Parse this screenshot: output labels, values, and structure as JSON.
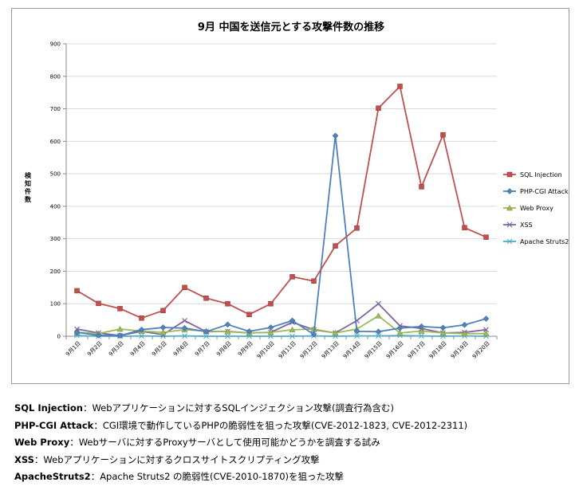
{
  "chart_data": {
    "type": "line",
    "title": "9月 中国を送信元とする攻撃件数の推移",
    "ylabel": "検知件数",
    "xlabel": "",
    "ylim": [
      0,
      900
    ],
    "yticks": [
      0,
      100,
      200,
      300,
      400,
      500,
      600,
      700,
      800,
      900
    ],
    "categories": [
      "9月1日",
      "9月2日",
      "9月3日",
      "9月4日",
      "9月5日",
      "9月6日",
      "9月7日",
      "9月8日",
      "9月9日",
      "9月10日",
      "9月11日",
      "9月12日",
      "9月13日",
      "9月14日",
      "9月15日",
      "9月16日",
      "9月17日",
      "9月18日",
      "9月19日",
      "9月20日"
    ],
    "legend_position": "right",
    "grid": true,
    "series": [
      {
        "name": "SQL Injection",
        "color": "#c0504d",
        "marker": "square",
        "values": [
          140,
          101,
          85,
          56,
          79,
          150,
          117,
          100,
          67,
          100,
          183,
          170,
          278,
          333,
          702,
          769,
          460,
          620,
          334,
          305
        ]
      },
      {
        "name": "PHP-CGI Attack",
        "color": "#4f81bd",
        "marker": "diamond",
        "values": [
          12,
          3,
          2,
          20,
          27,
          25,
          14,
          36,
          15,
          27,
          48,
          6,
          617,
          15,
          14,
          25,
          30,
          26,
          35,
          54
        ]
      },
      {
        "name": "Web Proxy",
        "color": "#9bbb59",
        "marker": "triangle",
        "values": [
          12,
          8,
          22,
          16,
          12,
          20,
          16,
          14,
          10,
          12,
          20,
          22,
          10,
          22,
          63,
          10,
          16,
          10,
          8,
          8
        ]
      },
      {
        "name": "XSS",
        "color": "#8064a2",
        "marker": "x",
        "values": [
          22,
          10,
          2,
          15,
          5,
          48,
          14,
          15,
          10,
          12,
          43,
          20,
          10,
          48,
          100,
          32,
          24,
          10,
          12,
          20
        ]
      },
      {
        "name": "Apache Struts2",
        "color": "#4bacc6",
        "marker": "star",
        "values": [
          2,
          0,
          0,
          1,
          0,
          1,
          0,
          0,
          0,
          0,
          0,
          1,
          0,
          1,
          1,
          2,
          1,
          0,
          1,
          0
        ]
      }
    ]
  },
  "notes": [
    {
      "term": "SQL Injection",
      "sep": "：",
      "desc": "Webアプリケーションに対するSQLインジェクション攻撃(調査行為含む)"
    },
    {
      "term": "PHP-CGI Attack",
      "sep": "：",
      "desc": "CGI環境で動作しているPHPの脆弱性を狙った攻撃(CVE-2012-1823, CVE-2012-2311)"
    },
    {
      "term": "Web Proxy",
      "sep": "：",
      "desc": "Webサーバに対するProxyサーバとして使用可能かどうかを調査する試み"
    },
    {
      "term": "XSS",
      "sep": "：",
      "desc": "Webアプリケーションに対するクロスサイトスクリプティング攻撃"
    },
    {
      "term": "ApacheStruts2",
      "sep": "：",
      "desc": "Apache Struts2 の脆弱性(CVE-2010-1870)を狙った攻撃"
    }
  ]
}
